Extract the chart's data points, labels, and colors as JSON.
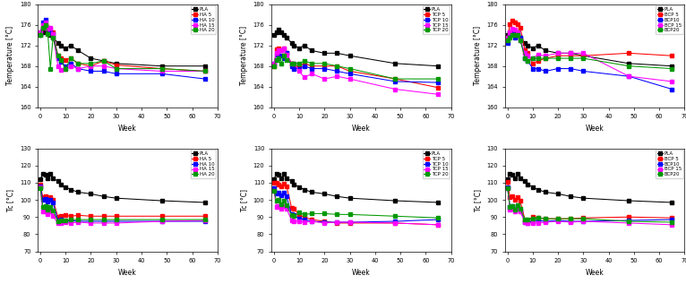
{
  "weeks": [
    0,
    1,
    2,
    3,
    4,
    5,
    7,
    8,
    10,
    12,
    15,
    20,
    25,
    30,
    48,
    65
  ],
  "tm_HA": {
    "PLA": [
      174.0,
      174.5,
      175.0,
      174.5,
      174.0,
      173.5,
      172.5,
      172.0,
      171.5,
      172.0,
      171.0,
      169.5,
      169.0,
      168.5,
      168.0,
      168.0
    ],
    "HA5": [
      174.5,
      175.5,
      176.0,
      175.5,
      175.2,
      174.5,
      170.0,
      169.5,
      169.2,
      169.5,
      168.5,
      168.0,
      169.0,
      168.2,
      167.5,
      167.0
    ],
    "HA10": [
      174.2,
      176.5,
      177.0,
      175.5,
      174.5,
      174.2,
      169.5,
      168.8,
      168.0,
      168.5,
      167.5,
      167.0,
      167.0,
      166.5,
      166.5,
      165.5
    ],
    "HA15": [
      174.5,
      176.0,
      176.5,
      175.2,
      175.5,
      174.2,
      168.0,
      167.2,
      167.5,
      168.0,
      167.5,
      168.0,
      168.0,
      167.5,
      167.0,
      167.0
    ],
    "HA20": [
      174.0,
      175.5,
      176.0,
      174.2,
      167.5,
      173.5,
      170.0,
      169.2,
      167.5,
      169.5,
      168.5,
      168.5,
      169.0,
      167.5,
      167.5,
      167.0
    ]
  },
  "tm_TCP": {
    "PLA": [
      174.0,
      174.5,
      175.0,
      174.5,
      174.0,
      173.5,
      172.5,
      172.0,
      171.5,
      172.0,
      171.0,
      170.5,
      170.5,
      170.0,
      168.5,
      168.0
    ],
    "TCP5": [
      168.0,
      171.2,
      171.5,
      171.0,
      171.5,
      170.5,
      168.5,
      168.0,
      168.0,
      168.5,
      168.0,
      168.0,
      168.0,
      167.0,
      165.5,
      163.8
    ],
    "TCP10": [
      168.5,
      170.2,
      170.0,
      170.0,
      169.5,
      170.5,
      168.0,
      167.5,
      167.5,
      168.0,
      167.5,
      167.5,
      167.0,
      166.5,
      165.0,
      164.8
    ],
    "TCP15": [
      168.5,
      170.5,
      171.0,
      171.0,
      171.5,
      170.2,
      168.5,
      168.5,
      167.0,
      165.8,
      166.5,
      165.5,
      166.0,
      165.5,
      163.5,
      162.5
    ],
    "TCP20": [
      168.0,
      169.2,
      169.5,
      168.5,
      170.0,
      169.2,
      168.5,
      168.5,
      168.5,
      169.0,
      168.5,
      168.5,
      168.0,
      167.5,
      165.5,
      165.5
    ]
  },
  "tm_BCP": {
    "PLA": [
      174.0,
      174.5,
      175.0,
      174.5,
      174.0,
      173.5,
      172.5,
      172.0,
      171.5,
      172.0,
      171.0,
      170.5,
      170.5,
      170.0,
      168.5,
      168.0
    ],
    "BCP5": [
      173.5,
      176.2,
      176.8,
      176.5,
      176.2,
      175.5,
      171.0,
      170.5,
      168.5,
      169.0,
      169.5,
      170.0,
      170.0,
      170.0,
      170.5,
      170.0
    ],
    "BCP10": [
      172.5,
      174.0,
      174.5,
      173.5,
      174.5,
      173.5,
      169.5,
      169.0,
      167.5,
      167.5,
      167.0,
      167.5,
      167.5,
      167.0,
      166.0,
      163.5
    ],
    "BCP15": [
      173.5,
      174.5,
      175.2,
      175.0,
      174.5,
      173.0,
      170.5,
      170.0,
      169.5,
      170.2,
      170.0,
      170.5,
      170.5,
      170.5,
      166.0,
      165.0
    ],
    "BCP20": [
      173.0,
      173.5,
      174.0,
      174.0,
      174.0,
      173.0,
      169.5,
      169.0,
      169.5,
      169.5,
      169.5,
      169.5,
      169.5,
      169.5,
      168.0,
      167.5
    ]
  },
  "tc_HA": {
    "PLA": [
      112.0,
      115.0,
      114.5,
      112.5,
      115.0,
      112.5,
      111.0,
      109.0,
      107.5,
      106.0,
      104.5,
      103.5,
      102.0,
      101.0,
      99.5,
      98.5
    ],
    "HA5": [
      109.0,
      101.5,
      102.0,
      100.5,
      101.5,
      100.0,
      90.0,
      90.5,
      91.0,
      90.5,
      91.0,
      90.5,
      90.5,
      90.5,
      90.5,
      90.5
    ],
    "HA10": [
      108.0,
      100.0,
      100.5,
      99.0,
      100.0,
      98.5,
      88.0,
      88.5,
      87.5,
      88.0,
      87.5,
      87.5,
      87.5,
      87.5,
      87.5,
      87.5
    ],
    "HA15": [
      107.5,
      93.0,
      93.5,
      91.5,
      93.0,
      90.5,
      86.5,
      86.5,
      87.0,
      86.5,
      87.0,
      86.5,
      86.5,
      86.5,
      87.5,
      88.0
    ],
    "HA20": [
      107.0,
      96.0,
      96.5,
      94.5,
      96.0,
      94.0,
      87.5,
      88.0,
      88.0,
      88.5,
      88.5,
      88.5,
      88.5,
      88.5,
      88.5,
      88.5
    ]
  },
  "tc_TCP": {
    "PLA": [
      112.0,
      115.0,
      114.5,
      112.5,
      115.0,
      112.5,
      111.0,
      109.0,
      107.5,
      106.0,
      104.5,
      103.5,
      102.0,
      101.0,
      99.5,
      98.5
    ],
    "TCP5": [
      110.0,
      110.0,
      109.0,
      108.0,
      109.5,
      108.0,
      95.5,
      95.0,
      91.0,
      90.0,
      88.5,
      87.5,
      86.5,
      86.5,
      86.5,
      85.5
    ],
    "TCP10": [
      107.0,
      103.5,
      104.0,
      102.5,
      104.0,
      102.0,
      91.5,
      91.0,
      89.0,
      88.5,
      87.5,
      87.0,
      87.0,
      87.0,
      87.5,
      88.5
    ],
    "TCP15": [
      105.5,
      96.0,
      96.5,
      95.0,
      96.5,
      95.0,
      88.0,
      87.5,
      87.5,
      87.0,
      87.5,
      86.5,
      87.0,
      87.0,
      86.5,
      85.5
    ],
    "TCP20": [
      105.5,
      99.5,
      100.0,
      97.5,
      99.5,
      97.0,
      91.0,
      90.5,
      92.5,
      91.5,
      92.0,
      92.0,
      91.5,
      91.5,
      90.5,
      89.5
    ]
  },
  "tc_BCP": {
    "PLA": [
      112.0,
      115.0,
      114.5,
      112.5,
      115.0,
      112.5,
      111.0,
      109.0,
      107.5,
      106.0,
      104.5,
      103.5,
      102.0,
      101.0,
      99.5,
      98.5
    ],
    "BCP5": [
      110.5,
      101.5,
      102.0,
      100.0,
      101.5,
      99.5,
      88.0,
      88.0,
      90.0,
      89.5,
      89.0,
      89.0,
      89.0,
      89.5,
      90.0,
      89.5
    ],
    "BCP10": [
      107.5,
      96.0,
      96.5,
      94.5,
      96.5,
      94.0,
      87.0,
      86.5,
      88.0,
      88.0,
      87.5,
      88.0,
      87.5,
      87.5,
      88.0,
      88.5
    ],
    "BCP15": [
      107.0,
      94.5,
      95.0,
      93.0,
      95.0,
      93.0,
      87.0,
      86.5,
      86.5,
      86.5,
      87.0,
      87.5,
      87.0,
      87.5,
      86.5,
      85.5
    ],
    "BCP20": [
      107.0,
      96.0,
      96.5,
      94.5,
      97.0,
      95.0,
      88.5,
      88.5,
      89.0,
      89.5,
      89.0,
      89.0,
      89.0,
      89.0,
      87.5,
      87.0
    ]
  },
  "colors_HA": {
    "PLA": "#000000",
    "HA 5": "#ff0000",
    "HA 10": "#0000ff",
    "HA 15": "#ff00ff",
    "HA 20": "#009900"
  },
  "colors_TCP": {
    "PLA": "#000000",
    "TCP 5": "#ff0000",
    "TCP 10": "#0000ff",
    "TCP 15": "#ff00ff",
    "TCP 20": "#009900"
  },
  "colors_BCP": {
    "PLA": "#000000",
    "BCP 5": "#ff0000",
    "BCP10": "#0000ff",
    "BCP 15": "#ff00ff",
    "BCP20": "#009900"
  },
  "legend_keys_HA": [
    "PLA",
    "HA5",
    "HA10",
    "HA15",
    "HA20"
  ],
  "legend_keys_TCP": [
    "PLA",
    "TCP5",
    "TCP10",
    "TCP15",
    "TCP20"
  ],
  "legend_keys_BCP": [
    "PLA",
    "BCP5",
    "BCP10",
    "BCP15",
    "BCP20"
  ],
  "ylim_tm": [
    160,
    180
  ],
  "ylim_tc": [
    70,
    130
  ],
  "yticks_tm": [
    160,
    164,
    168,
    172,
    176,
    180
  ],
  "yticks_tc": [
    70,
    80,
    90,
    100,
    110,
    120,
    130
  ],
  "xticks": [
    0,
    10,
    20,
    30,
    40,
    50,
    60,
    70
  ]
}
